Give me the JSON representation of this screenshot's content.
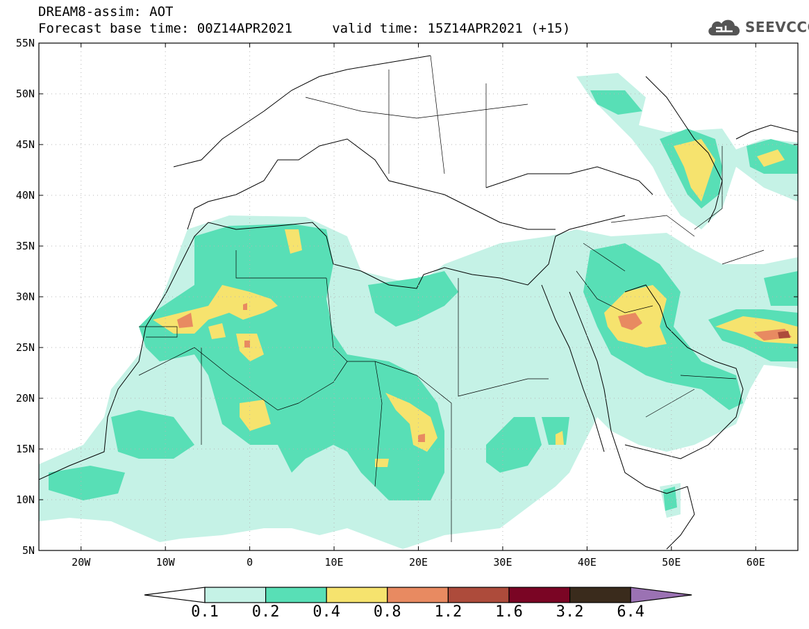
{
  "header": {
    "line1": "DREAM8-assim: AOT",
    "line2": "Forecast base time: 00Z14APR2021     valid time: 15Z14APR2021 (+15)",
    "logo_text": "SEEVCCC",
    "logo_icon": "cloud-icon"
  },
  "map": {
    "lon_range": [
      -25,
      65
    ],
    "lat_range": [
      5,
      55
    ],
    "lat_ticks": [
      "55N",
      "50N",
      "45N",
      "40N",
      "35N",
      "30N",
      "25N",
      "20N",
      "15N",
      "10N",
      "5N"
    ],
    "lon_ticks": [
      "20W",
      "10W",
      "0",
      "10E",
      "20E",
      "30E",
      "40E",
      "50E",
      "60E"
    ],
    "land_color": "#ffffff",
    "border_color": "#000000"
  },
  "colorbar": {
    "labels": [
      "0.1",
      "0.2",
      "0.4",
      "0.8",
      "1.2",
      "1.6",
      "3.2",
      "6.4"
    ],
    "colors": [
      "#c5f2e6",
      "#58dfb6",
      "#f6e36e",
      "#e88a61",
      "#ad4b3b",
      "#7a0524",
      "#3a2b1c",
      "#9b72b3"
    ],
    "under_color": "#ffffff"
  }
}
